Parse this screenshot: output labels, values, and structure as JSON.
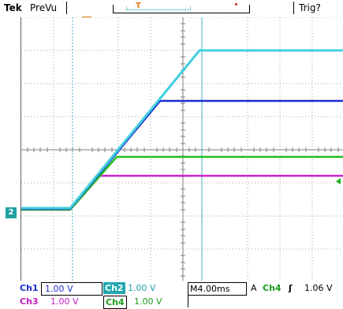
{
  "header": {
    "brand": "Tek",
    "mode": "PreVu",
    "trigger_status": "Trig?",
    "record_marker": "T",
    "trigger_position_marker": "T"
  },
  "channels": [
    {
      "name": "Ch1",
      "scale": "1.00 V",
      "color": "#1a2ccc"
    },
    {
      "name": "Ch2",
      "scale": "1.00 V",
      "color": "#20a8b0"
    },
    {
      "name": "Ch3",
      "scale": "1.00 V",
      "color": "#c01cc0"
    },
    {
      "name": "Ch4",
      "scale": "1.00 V",
      "color": "#1a9a1a"
    }
  ],
  "ground_marker": "2",
  "timebase": {
    "prefix": "M",
    "value": "4.00ms"
  },
  "trigger": {
    "mode": "A",
    "source": "Ch4",
    "slope_icon": "rising-edge-icon",
    "slope_symbol": "ʃ",
    "level": "1.06 V"
  },
  "colors": {
    "grid": "#a0a0a0",
    "ch1": "#1a2ccc",
    "ch2": "#40d0e0",
    "ch3": "#d020d0",
    "ch4": "#20c020",
    "cursor": "#40b0c0",
    "trigger_marker": "#e07a10"
  }
}
